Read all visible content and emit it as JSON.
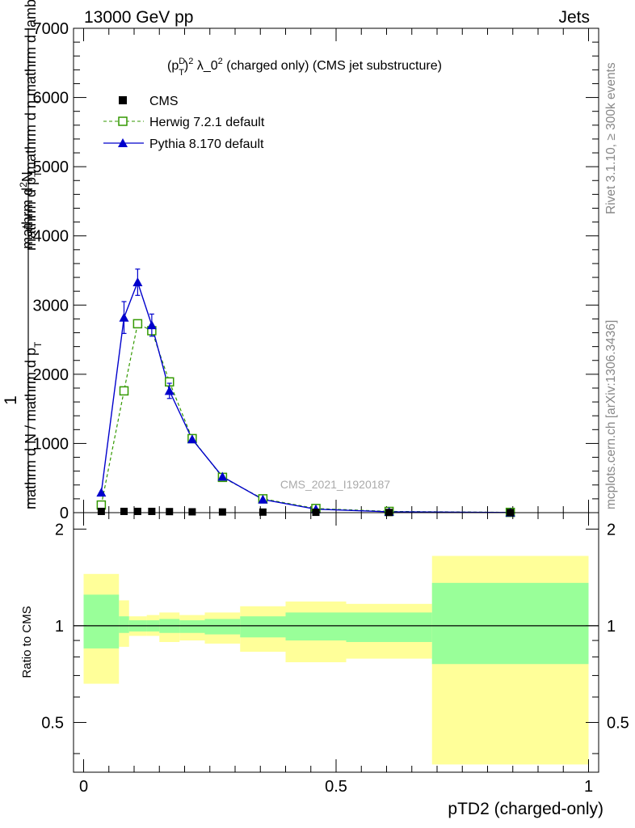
{
  "header": {
    "energy_label": "13000 GeV pp",
    "process_label": "Jets"
  },
  "side_labels": {
    "rivet": "Rivet 3.1.10, ≥ 300k events",
    "mcplots": "mcplots.cern.ch [arXiv:1306.3436]"
  },
  "chart_data": [
    {
      "type": "line",
      "panel": "main",
      "title_parts": {
        "prefix": "(p",
        "sup_D": "D",
        "sub_T": "T",
        "close": ")",
        "sup_2": "2",
        "lambda": " λ_0",
        "sup_2b": "2",
        "rest": " (charged only) (CMS jet substructure)"
      },
      "watermark": "CMS_2021_I1920187",
      "ylabel_parts": {
        "one": "1",
        "num": "mathrm d",
        "num_sup": "2",
        "num_rest": "N",
        "den_1": "mathrm d N / mathrm d p",
        "den_sub_T1": "T",
        "den_2": " mathrm d p",
        "den_sub_T2": "T",
        "den_3": " mathrm d η",
        "den_4": " mathrm d lambda"
      },
      "xlim": [
        -0.02,
        1.02
      ],
      "ylim": [
        0,
        7000
      ],
      "yticks": [
        0,
        1000,
        2000,
        3000,
        4000,
        5000,
        6000,
        7000
      ],
      "ytick_labels": [
        "0",
        "1000",
        "2000",
        "3000",
        "4000",
        "5000",
        "6000",
        "7000"
      ],
      "legend_position": "top-left",
      "x": [
        0.035,
        0.08,
        0.107,
        0.135,
        0.17,
        0.215,
        0.275,
        0.355,
        0.46,
        0.605,
        0.845
      ],
      "series": [
        {
          "name": "CMS",
          "color": "#000000",
          "marker": "square-filled",
          "values": [
            18,
            18,
            18,
            18,
            15,
            12,
            10,
            8,
            5,
            3,
            1
          ]
        },
        {
          "name": "Herwig 7.2.1 default",
          "color": "#339900",
          "marker": "square-open",
          "line": "dashed",
          "values": [
            110,
            1760,
            2730,
            2630,
            1890,
            1070,
            510,
            200,
            60,
            18,
            4
          ],
          "errors": [
            0,
            0,
            0,
            0,
            0,
            0,
            0,
            0,
            0,
            0,
            0
          ]
        },
        {
          "name": "Pythia 8.170 default",
          "color": "#0000cc",
          "marker": "triangle-filled",
          "line": "solid",
          "values": [
            290,
            2820,
            3330,
            2710,
            1760,
            1060,
            520,
            190,
            50,
            12,
            2
          ],
          "errors": [
            0,
            230,
            190,
            160,
            110,
            0,
            0,
            0,
            0,
            0,
            0
          ]
        }
      ]
    },
    {
      "type": "area",
      "panel": "ratio",
      "ylabel": "Ratio to CMS",
      "xlabel": "pTD2 (charged-only)",
      "xlim": [
        -0.02,
        1.02
      ],
      "ylim": [
        0.35,
        2.25
      ],
      "yticks_major": [
        0.5,
        1,
        2
      ],
      "ytick_labels": [
        "0.5",
        "1",
        "2"
      ],
      "xticks": [
        0,
        0.5,
        1
      ],
      "xtick_labels": [
        "0",
        "0.5",
        "1"
      ],
      "reference_line": 1,
      "bins": [
        [
          0.0,
          0.07
        ],
        [
          0.07,
          0.09
        ],
        [
          0.09,
          0.125
        ],
        [
          0.125,
          0.15
        ],
        [
          0.15,
          0.19
        ],
        [
          0.19,
          0.24
        ],
        [
          0.24,
          0.31
        ],
        [
          0.31,
          0.4
        ],
        [
          0.4,
          0.52
        ],
        [
          0.52,
          0.69
        ],
        [
          0.69,
          1.0
        ]
      ],
      "outer_band": {
        "color": "#ffff99",
        "lower": [
          0.66,
          0.86,
          0.93,
          0.93,
          0.89,
          0.9,
          0.88,
          0.83,
          0.77,
          0.79,
          0.37
        ],
        "upper": [
          1.45,
          1.2,
          1.07,
          1.08,
          1.1,
          1.08,
          1.1,
          1.15,
          1.19,
          1.17,
          1.65
        ]
      },
      "inner_band": {
        "color": "#99ff99",
        "lower": [
          0.85,
          0.95,
          0.96,
          0.96,
          0.95,
          0.95,
          0.94,
          0.92,
          0.9,
          0.89,
          0.76
        ],
        "upper": [
          1.25,
          1.07,
          1.04,
          1.04,
          1.05,
          1.04,
          1.05,
          1.07,
          1.1,
          1.1,
          1.36
        ]
      }
    }
  ]
}
